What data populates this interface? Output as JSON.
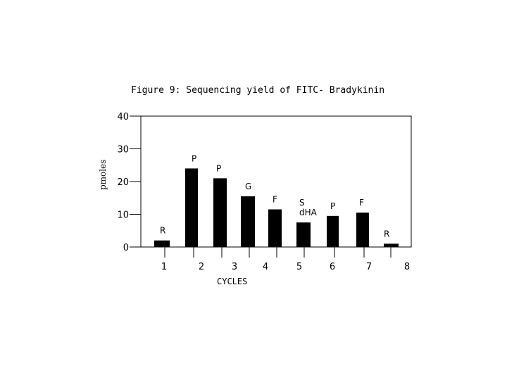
{
  "chart_data": {
    "type": "bar",
    "title": "Figure 9: Sequencing yield of FITC- Bradykinin",
    "xlabel": "CYCLES",
    "ylabel": "pmoles",
    "ylim": [
      0,
      40
    ],
    "y_ticks": [
      "0",
      "10",
      "20",
      "30",
      "40"
    ],
    "x_ticks": [
      "1",
      "2",
      "3",
      "4",
      "5",
      "6",
      "7",
      "8"
    ],
    "bars": [
      {
        "label": "R",
        "value": 2
      },
      {
        "label": "P",
        "value": 24
      },
      {
        "label": "P",
        "value": 21
      },
      {
        "label": "G",
        "value": 15.5
      },
      {
        "label": "F",
        "value": 11.5
      },
      {
        "label": "S\ndHA",
        "value": 7.5
      },
      {
        "label": "P",
        "value": 9.5
      },
      {
        "label": "F",
        "value": 10.5
      },
      {
        "label": "R",
        "value": 1
      }
    ]
  }
}
